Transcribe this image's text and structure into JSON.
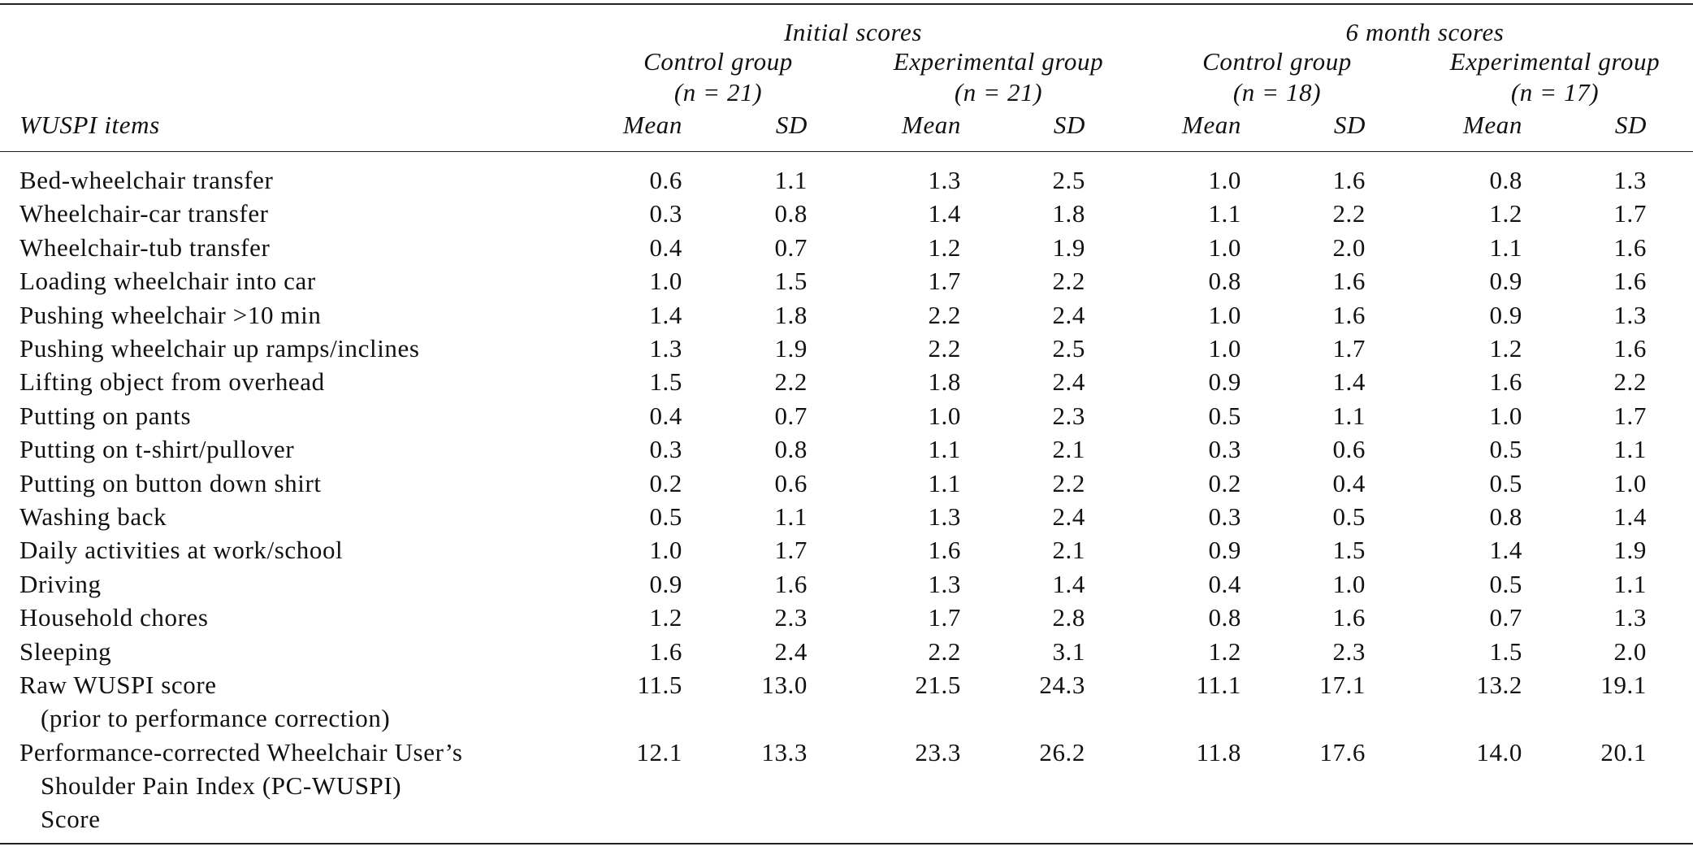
{
  "table": {
    "items_label": "WUSPI items",
    "periods": [
      "Initial scores",
      "6 month scores"
    ],
    "groups": [
      {
        "name": "Control group",
        "n": "(n = 21)",
        "stats": [
          "Mean",
          "SD"
        ]
      },
      {
        "name": "Experimental group",
        "n": "(n = 21)",
        "stats": [
          "Mean",
          "SD"
        ]
      },
      {
        "name": "Control group",
        "n": "(n = 18)",
        "stats": [
          "Mean",
          "SD"
        ]
      },
      {
        "name": "Experimental group",
        "n": "(n = 17)",
        "stats": [
          "Mean",
          "SD"
        ]
      }
    ],
    "rows": [
      {
        "label": [
          "Bed-wheelchair transfer"
        ],
        "values": [
          "0.6",
          "1.1",
          "1.3",
          "2.5",
          "1.0",
          "1.6",
          "0.8",
          "1.3"
        ]
      },
      {
        "label": [
          "Wheelchair-car transfer"
        ],
        "values": [
          "0.3",
          "0.8",
          "1.4",
          "1.8",
          "1.1",
          "2.2",
          "1.2",
          "1.7"
        ]
      },
      {
        "label": [
          "Wheelchair-tub transfer"
        ],
        "values": [
          "0.4",
          "0.7",
          "1.2",
          "1.9",
          "1.0",
          "2.0",
          "1.1",
          "1.6"
        ]
      },
      {
        "label": [
          "Loading wheelchair into car"
        ],
        "values": [
          "1.0",
          "1.5",
          "1.7",
          "2.2",
          "0.8",
          "1.6",
          "0.9",
          "1.6"
        ]
      },
      {
        "label": [
          "Pushing wheelchair >10 min"
        ],
        "values": [
          "1.4",
          "1.8",
          "2.2",
          "2.4",
          "1.0",
          "1.6",
          "0.9",
          "1.3"
        ]
      },
      {
        "label": [
          "Pushing wheelchair up ramps/inclines"
        ],
        "values": [
          "1.3",
          "1.9",
          "2.2",
          "2.5",
          "1.0",
          "1.7",
          "1.2",
          "1.6"
        ]
      },
      {
        "label": [
          "Lifting object from overhead"
        ],
        "values": [
          "1.5",
          "2.2",
          "1.8",
          "2.4",
          "0.9",
          "1.4",
          "1.6",
          "2.2"
        ]
      },
      {
        "label": [
          "Putting on pants"
        ],
        "values": [
          "0.4",
          "0.7",
          "1.0",
          "2.3",
          "0.5",
          "1.1",
          "1.0",
          "1.7"
        ]
      },
      {
        "label": [
          "Putting on t-shirt/pullover"
        ],
        "values": [
          "0.3",
          "0.8",
          "1.1",
          "2.1",
          "0.3",
          "0.6",
          "0.5",
          "1.1"
        ]
      },
      {
        "label": [
          "Putting on button down shirt"
        ],
        "values": [
          "0.2",
          "0.6",
          "1.1",
          "2.2",
          "0.2",
          "0.4",
          "0.5",
          "1.0"
        ]
      },
      {
        "label": [
          "Washing back"
        ],
        "values": [
          "0.5",
          "1.1",
          "1.3",
          "2.4",
          "0.3",
          "0.5",
          "0.8",
          "1.4"
        ]
      },
      {
        "label": [
          "Daily activities at work/school"
        ],
        "values": [
          "1.0",
          "1.7",
          "1.6",
          "2.1",
          "0.9",
          "1.5",
          "1.4",
          "1.9"
        ]
      },
      {
        "label": [
          "Driving"
        ],
        "values": [
          "0.9",
          "1.6",
          "1.3",
          "1.4",
          "0.4",
          "1.0",
          "0.5",
          "1.1"
        ]
      },
      {
        "label": [
          "Household chores"
        ],
        "values": [
          "1.2",
          "2.3",
          "1.7",
          "2.8",
          "0.8",
          "1.6",
          "0.7",
          "1.3"
        ]
      },
      {
        "label": [
          "Sleeping"
        ],
        "values": [
          "1.6",
          "2.4",
          "2.2",
          "3.1",
          "1.2",
          "2.3",
          "1.5",
          "2.0"
        ]
      },
      {
        "label": [
          "Raw WUSPI score",
          "(prior to performance correction)"
        ],
        "values": [
          "11.5",
          "13.0",
          "21.5",
          "24.3",
          "11.1",
          "17.1",
          "13.2",
          "19.1"
        ]
      },
      {
        "label": [
          "Performance-corrected Wheelchair User’s",
          "Shoulder Pain Index (PC-WUSPI)",
          "Score"
        ],
        "values": [
          "12.1",
          "13.3",
          "23.3",
          "26.2",
          "11.8",
          "17.6",
          "14.0",
          "20.1"
        ]
      }
    ]
  }
}
